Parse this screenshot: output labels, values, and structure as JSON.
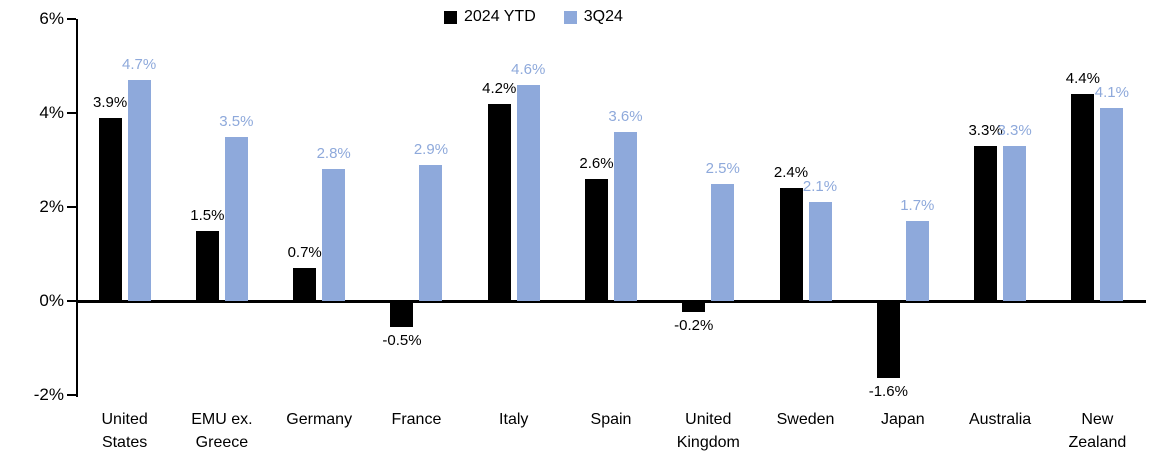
{
  "chart_data": {
    "type": "bar",
    "title": "",
    "categories": [
      "United States",
      "EMU ex. Greece",
      "Germany",
      "France",
      "Italy",
      "Spain",
      "United Kingdom",
      "Sweden",
      "Japan",
      "Australia",
      "New Zealand"
    ],
    "category_display": [
      "United\nStates",
      "EMU ex.\nGreece",
      "Germany",
      "France",
      "Italy",
      "Spain",
      "United\nKingdom",
      "Sweden",
      "Japan",
      "Australia",
      "New\nZealand"
    ],
    "series": [
      {
        "name": "2024 YTD",
        "color": "#000000",
        "label_color": "#000000",
        "values": [
          3.9,
          1.5,
          0.7,
          -0.5,
          4.2,
          2.6,
          -0.2,
          2.4,
          -1.6,
          3.3,
          4.4
        ],
        "labels": [
          "3.9%",
          "1.5%",
          "0.7%",
          "-0.5%",
          "4.2%",
          "2.6%",
          "-0.2%",
          "2.4%",
          "-1.6%",
          "3.3%",
          "4.4%"
        ]
      },
      {
        "name": "3Q24",
        "color": "#8EA9DB",
        "label_color": "#8EA9DB",
        "values": [
          4.7,
          3.5,
          2.8,
          2.9,
          4.6,
          3.6,
          2.5,
          2.1,
          1.7,
          3.3,
          4.1
        ],
        "labels": [
          "4.7%",
          "3.5%",
          "2.8%",
          "2.9%",
          "4.6%",
          "3.6%",
          "2.5%",
          "2.1%",
          "1.7%",
          "3.3%",
          "4.1%"
        ]
      }
    ],
    "xlabel": "",
    "ylabel": "",
    "ylim": [
      -2,
      6
    ],
    "yticks": [
      {
        "value": 6,
        "label": "6%"
      },
      {
        "value": 4,
        "label": "4%"
      },
      {
        "value": 2,
        "label": "2%"
      },
      {
        "value": 0,
        "label": "0%"
      },
      {
        "value": -2,
        "label": "-2%"
      }
    ],
    "grid": false,
    "legend_position": "top-center"
  }
}
